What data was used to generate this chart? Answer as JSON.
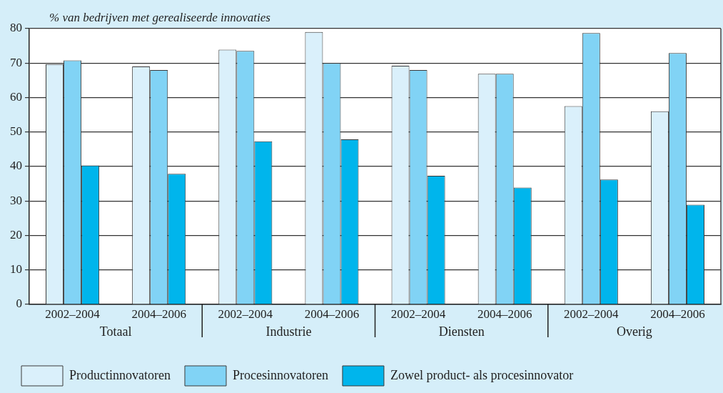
{
  "chart_data": {
    "type": "bar",
    "ylabel": "% van bedrijven met gerealiseerde innovaties",
    "categories": [
      "2002–2004",
      "2004–2006",
      "2002–2004",
      "2004–2006",
      "2002–2004",
      "2004–2006",
      "2002–2004",
      "2004–2006"
    ],
    "annotations": [
      "Totaal",
      "Industrie",
      "Diensten",
      "Overig"
    ],
    "series": [
      {
        "name": "Productinnovatoren",
        "color": "#daf0fb",
        "values": [
          69.7,
          69.0,
          73.9,
          79.0,
          69.2,
          66.9,
          57.5,
          56.0
        ]
      },
      {
        "name": "Procesinnovatoren",
        "color": "#81d3f5",
        "values": [
          70.8,
          68.0,
          73.5,
          70.0,
          68.0,
          66.9,
          78.7,
          72.9
        ]
      },
      {
        "name": "Zowel product- als procesinnovator",
        "color": "#00b5ec",
        "values": [
          40.3,
          37.9,
          47.3,
          47.9,
          37.3,
          33.9,
          36.2,
          28.9
        ]
      }
    ],
    "ylim": [
      0,
      80
    ],
    "yticks": [
      0,
      10,
      20,
      30,
      40,
      50,
      60,
      70,
      80
    ],
    "grid": "y",
    "legend": "bottom"
  }
}
